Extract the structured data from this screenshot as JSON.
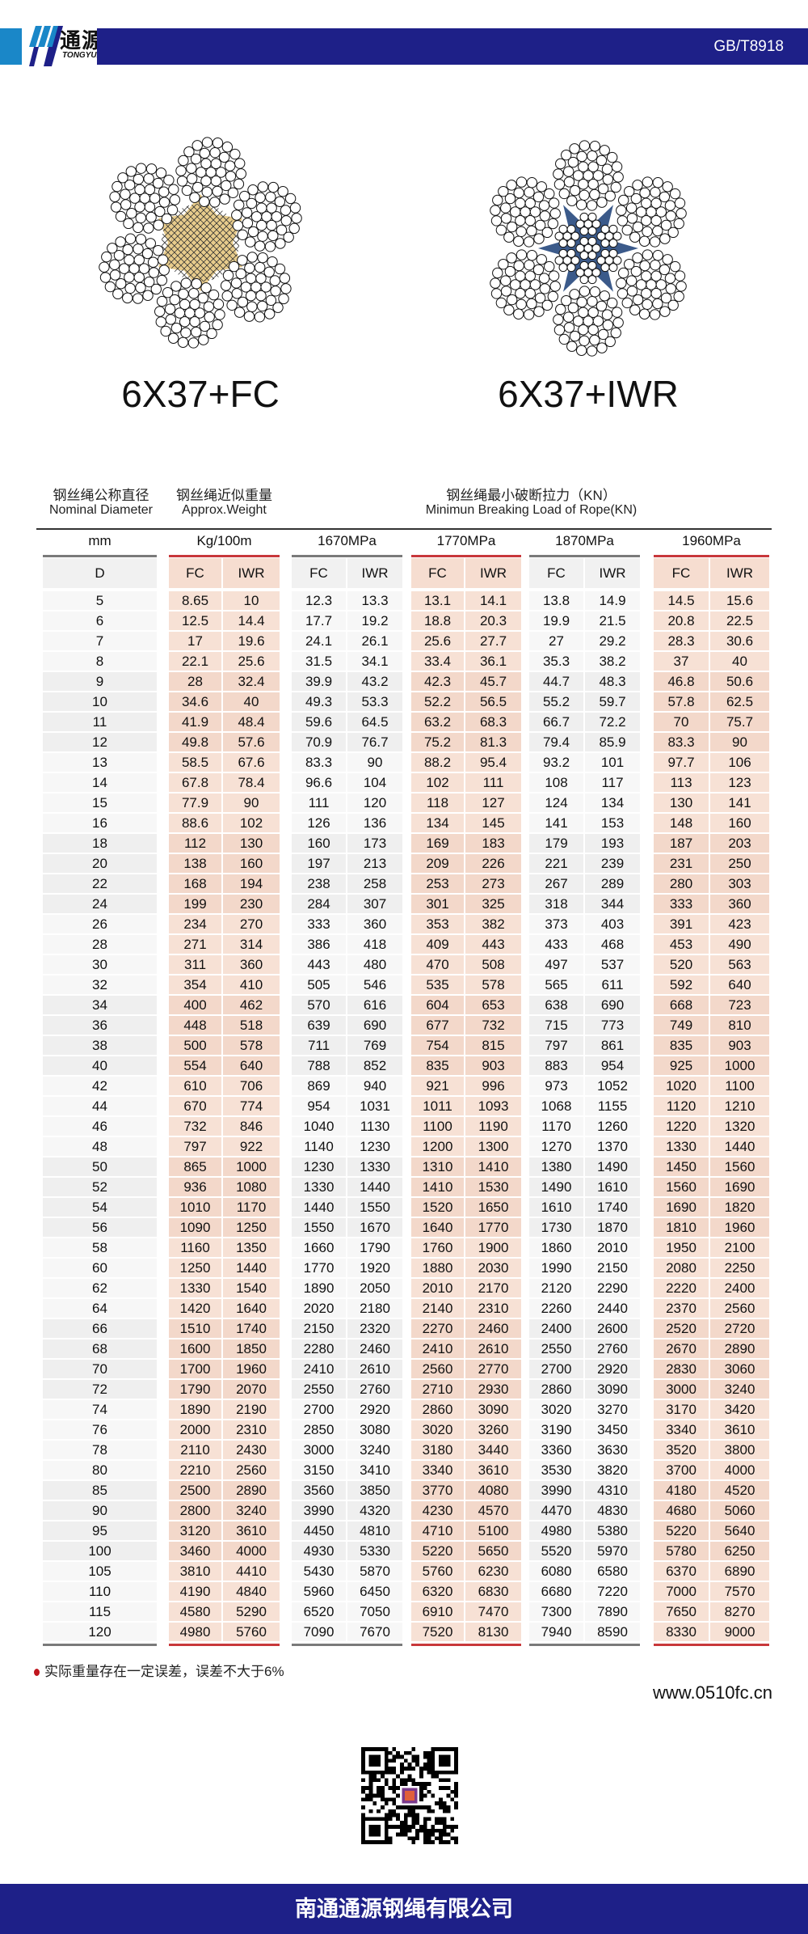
{
  "header": {
    "logo_cn": "通源",
    "logo_en": "TONGYUAN",
    "standard": "GB/T8918",
    "brand_colors": {
      "navy": "#1e2088",
      "blue": "#1a87c8"
    }
  },
  "ropes": [
    {
      "label": "6X37+FC",
      "core": "fiber-core",
      "core_color": "#e8cc8c"
    },
    {
      "label": "6X37+IWR",
      "core": "steel-core",
      "core_color": "#3b5a8a"
    }
  ],
  "table": {
    "headers": {
      "diameter_cn": "钢丝绳公称直径",
      "diameter_en": "Nominal Diameter",
      "weight_cn": "钢丝绳近似重量",
      "weight_en": "Approx.Weight",
      "load_cn": "钢丝绳最小破断拉力（KN）",
      "load_en": "Minimun Breaking Load of Rope(KN)"
    },
    "groups": [
      "mm",
      "Kg/100m",
      "1670MPa",
      "1770MPa",
      "1870MPa",
      "1960MPa"
    ],
    "subheaders": [
      "D",
      "FC",
      "IWR",
      "FC",
      "IWR",
      "FC",
      "IWR",
      "FC",
      "IWR",
      "FC",
      "IWR"
    ],
    "rows": [
      [
        "5",
        "8.65",
        "10",
        "12.3",
        "13.3",
        "13.1",
        "14.1",
        "13.8",
        "14.9",
        "14.5",
        "15.6"
      ],
      [
        "6",
        "12.5",
        "14.4",
        "17.7",
        "19.2",
        "18.8",
        "20.3",
        "19.9",
        "21.5",
        "20.8",
        "22.5"
      ],
      [
        "7",
        "17",
        "19.6",
        "24.1",
        "26.1",
        "25.6",
        "27.7",
        "27",
        "29.2",
        "28.3",
        "30.6"
      ],
      [
        "8",
        "22.1",
        "25.6",
        "31.5",
        "34.1",
        "33.4",
        "36.1",
        "35.3",
        "38.2",
        "37",
        "40"
      ],
      [
        "9",
        "28",
        "32.4",
        "39.9",
        "43.2",
        "42.3",
        "45.7",
        "44.7",
        "48.3",
        "46.8",
        "50.6"
      ],
      [
        "10",
        "34.6",
        "40",
        "49.3",
        "53.3",
        "52.2",
        "56.5",
        "55.2",
        "59.7",
        "57.8",
        "62.5"
      ],
      [
        "11",
        "41.9",
        "48.4",
        "59.6",
        "64.5",
        "63.2",
        "68.3",
        "66.7",
        "72.2",
        "70",
        "75.7"
      ],
      [
        "12",
        "49.8",
        "57.6",
        "70.9",
        "76.7",
        "75.2",
        "81.3",
        "79.4",
        "85.9",
        "83.3",
        "90"
      ],
      [
        "13",
        "58.5",
        "67.6",
        "83.3",
        "90",
        "88.2",
        "95.4",
        "93.2",
        "101",
        "97.7",
        "106"
      ],
      [
        "14",
        "67.8",
        "78.4",
        "96.6",
        "104",
        "102",
        "111",
        "108",
        "117",
        "113",
        "123"
      ],
      [
        "15",
        "77.9",
        "90",
        "111",
        "120",
        "118",
        "127",
        "124",
        "134",
        "130",
        "141"
      ],
      [
        "16",
        "88.6",
        "102",
        "126",
        "136",
        "134",
        "145",
        "141",
        "153",
        "148",
        "160"
      ],
      [
        "18",
        "112",
        "130",
        "160",
        "173",
        "169",
        "183",
        "179",
        "193",
        "187",
        "203"
      ],
      [
        "20",
        "138",
        "160",
        "197",
        "213",
        "209",
        "226",
        "221",
        "239",
        "231",
        "250"
      ],
      [
        "22",
        "168",
        "194",
        "238",
        "258",
        "253",
        "273",
        "267",
        "289",
        "280",
        "303"
      ],
      [
        "24",
        "199",
        "230",
        "284",
        "307",
        "301",
        "325",
        "318",
        "344",
        "333",
        "360"
      ],
      [
        "26",
        "234",
        "270",
        "333",
        "360",
        "353",
        "382",
        "373",
        "403",
        "391",
        "423"
      ],
      [
        "28",
        "271",
        "314",
        "386",
        "418",
        "409",
        "443",
        "433",
        "468",
        "453",
        "490"
      ],
      [
        "30",
        "311",
        "360",
        "443",
        "480",
        "470",
        "508",
        "497",
        "537",
        "520",
        "563"
      ],
      [
        "32",
        "354",
        "410",
        "505",
        "546",
        "535",
        "578",
        "565",
        "611",
        "592",
        "640"
      ],
      [
        "34",
        "400",
        "462",
        "570",
        "616",
        "604",
        "653",
        "638",
        "690",
        "668",
        "723"
      ],
      [
        "36",
        "448",
        "518",
        "639",
        "690",
        "677",
        "732",
        "715",
        "773",
        "749",
        "810"
      ],
      [
        "38",
        "500",
        "578",
        "711",
        "769",
        "754",
        "815",
        "797",
        "861",
        "835",
        "903"
      ],
      [
        "40",
        "554",
        "640",
        "788",
        "852",
        "835",
        "903",
        "883",
        "954",
        "925",
        "1000"
      ],
      [
        "42",
        "610",
        "706",
        "869",
        "940",
        "921",
        "996",
        "973",
        "1052",
        "1020",
        "1100"
      ],
      [
        "44",
        "670",
        "774",
        "954",
        "1031",
        "1011",
        "1093",
        "1068",
        "1155",
        "1120",
        "1210"
      ],
      [
        "46",
        "732",
        "846",
        "1040",
        "1130",
        "1100",
        "1190",
        "1170",
        "1260",
        "1220",
        "1320"
      ],
      [
        "48",
        "797",
        "922",
        "1140",
        "1230",
        "1200",
        "1300",
        "1270",
        "1370",
        "1330",
        "1440"
      ],
      [
        "50",
        "865",
        "1000",
        "1230",
        "1330",
        "1310",
        "1410",
        "1380",
        "1490",
        "1450",
        "1560"
      ],
      [
        "52",
        "936",
        "1080",
        "1330",
        "1440",
        "1410",
        "1530",
        "1490",
        "1610",
        "1560",
        "1690"
      ],
      [
        "54",
        "1010",
        "1170",
        "1440",
        "1550",
        "1520",
        "1650",
        "1610",
        "1740",
        "1690",
        "1820"
      ],
      [
        "56",
        "1090",
        "1250",
        "1550",
        "1670",
        "1640",
        "1770",
        "1730",
        "1870",
        "1810",
        "1960"
      ],
      [
        "58",
        "1160",
        "1350",
        "1660",
        "1790",
        "1760",
        "1900",
        "1860",
        "2010",
        "1950",
        "2100"
      ],
      [
        "60",
        "1250",
        "1440",
        "1770",
        "1920",
        "1880",
        "2030",
        "1990",
        "2150",
        "2080",
        "2250"
      ],
      [
        "62",
        "1330",
        "1540",
        "1890",
        "2050",
        "2010",
        "2170",
        "2120",
        "2290",
        "2220",
        "2400"
      ],
      [
        "64",
        "1420",
        "1640",
        "2020",
        "2180",
        "2140",
        "2310",
        "2260",
        "2440",
        "2370",
        "2560"
      ],
      [
        "66",
        "1510",
        "1740",
        "2150",
        "2320",
        "2270",
        "2460",
        "2400",
        "2600",
        "2520",
        "2720"
      ],
      [
        "68",
        "1600",
        "1850",
        "2280",
        "2460",
        "2410",
        "2610",
        "2550",
        "2760",
        "2670",
        "2890"
      ],
      [
        "70",
        "1700",
        "1960",
        "2410",
        "2610",
        "2560",
        "2770",
        "2700",
        "2920",
        "2830",
        "3060"
      ],
      [
        "72",
        "1790",
        "2070",
        "2550",
        "2760",
        "2710",
        "2930",
        "2860",
        "3090",
        "3000",
        "3240"
      ],
      [
        "74",
        "1890",
        "2190",
        "2700",
        "2920",
        "2860",
        "3090",
        "3020",
        "3270",
        "3170",
        "3420"
      ],
      [
        "76",
        "2000",
        "2310",
        "2850",
        "3080",
        "3020",
        "3260",
        "3190",
        "3450",
        "3340",
        "3610"
      ],
      [
        "78",
        "2110",
        "2430",
        "3000",
        "3240",
        "3180",
        "3440",
        "3360",
        "3630",
        "3520",
        "3800"
      ],
      [
        "80",
        "2210",
        "2560",
        "3150",
        "3410",
        "3340",
        "3610",
        "3530",
        "3820",
        "3700",
        "4000"
      ],
      [
        "85",
        "2500",
        "2890",
        "3560",
        "3850",
        "3770",
        "4080",
        "3990",
        "4310",
        "4180",
        "4520"
      ],
      [
        "90",
        "2800",
        "3240",
        "3990",
        "4320",
        "4230",
        "4570",
        "4470",
        "4830",
        "4680",
        "5060"
      ],
      [
        "95",
        "3120",
        "3610",
        "4450",
        "4810",
        "4710",
        "5100",
        "4980",
        "5380",
        "5220",
        "5640"
      ],
      [
        "100",
        "3460",
        "4000",
        "4930",
        "5330",
        "5220",
        "5650",
        "5520",
        "5970",
        "5780",
        "6250"
      ],
      [
        "105",
        "3810",
        "4410",
        "5430",
        "5870",
        "5760",
        "6230",
        "6080",
        "6580",
        "6370",
        "6890"
      ],
      [
        "110",
        "4190",
        "4840",
        "5960",
        "6450",
        "6320",
        "6830",
        "6680",
        "7220",
        "7000",
        "7570"
      ],
      [
        "115",
        "4580",
        "5290",
        "6520",
        "7050",
        "6910",
        "7470",
        "7300",
        "7890",
        "7650",
        "8270"
      ],
      [
        "120",
        "4980",
        "5760",
        "7090",
        "7670",
        "7520",
        "8130",
        "7940",
        "8590",
        "8330",
        "9000"
      ]
    ],
    "colors": {
      "gray": "#f1f1f1",
      "salmon": "#f6ddd0",
      "gray_rule": "#7a7a7a",
      "red_rule": "#c8383b"
    }
  },
  "footer": {
    "note": "实际重量存在一定误差，误差不大于6%",
    "website": "www.0510fc.cn",
    "company": "南通通源钢绳有限公司"
  }
}
